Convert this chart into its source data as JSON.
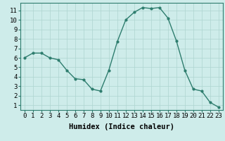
{
  "x": [
    0,
    1,
    2,
    3,
    4,
    5,
    6,
    7,
    8,
    9,
    10,
    11,
    12,
    13,
    14,
    15,
    16,
    17,
    18,
    19,
    20,
    21,
    22,
    23
  ],
  "y": [
    6.0,
    6.5,
    6.5,
    6.0,
    5.8,
    4.7,
    3.8,
    3.7,
    2.7,
    2.5,
    4.7,
    7.7,
    10.0,
    10.8,
    11.3,
    11.2,
    11.3,
    10.2,
    7.8,
    4.7,
    2.7,
    2.5,
    1.3,
    0.8
  ],
  "line_color": "#2e7d6e",
  "marker": "o",
  "markersize": 2.0,
  "linewidth": 1.0,
  "bg_color": "#ceecea",
  "grid_color": "#aed4d0",
  "xlabel": "Humidex (Indice chaleur)",
  "xlim": [
    -0.5,
    23.5
  ],
  "ylim": [
    0.5,
    11.8
  ],
  "xtick_labels": [
    "0",
    "1",
    "2",
    "3",
    "4",
    "5",
    "6",
    "7",
    "8",
    "9",
    "10",
    "11",
    "12",
    "13",
    "14",
    "15",
    "16",
    "17",
    "18",
    "19",
    "20",
    "21",
    "22",
    "23"
  ],
  "ytick_values": [
    1,
    2,
    3,
    4,
    5,
    6,
    7,
    8,
    9,
    10,
    11
  ],
  "xlabel_fontsize": 7.5,
  "tick_fontsize": 6.5
}
